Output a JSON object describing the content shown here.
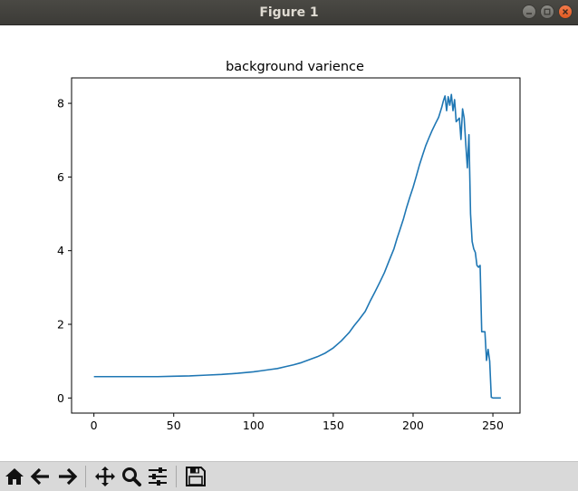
{
  "window": {
    "title": "Figure 1"
  },
  "toolbar": {
    "buttons": [
      {
        "name": "home-button",
        "icon": "home-icon"
      },
      {
        "name": "back-button",
        "icon": "arrow-left-icon"
      },
      {
        "name": "forward-button",
        "icon": "arrow-right-icon"
      },
      {
        "name": "pan-button",
        "icon": "move-icon"
      },
      {
        "name": "zoom-button",
        "icon": "magnifier-icon"
      },
      {
        "name": "configure-subplots-button",
        "icon": "sliders-icon"
      },
      {
        "name": "save-button",
        "icon": "floppy-disk-icon"
      }
    ]
  },
  "chart_data": {
    "type": "line",
    "title": "background varience",
    "xlabel": "",
    "ylabel": "",
    "xlim": [
      -14,
      267
    ],
    "ylim": [
      -0.41,
      8.69
    ],
    "xticks": [
      0,
      50,
      100,
      150,
      200,
      250
    ],
    "xtick_labels": [
      "0",
      "50",
      "100",
      "150",
      "200",
      "250"
    ],
    "yticks": [
      0,
      2,
      4,
      6,
      8
    ],
    "ytick_labels": [
      "0",
      "2",
      "4",
      "6",
      "8"
    ],
    "grid": false,
    "line_color": "#1f77b4",
    "series": [
      {
        "x": [
          0,
          5,
          10,
          20,
          30,
          40,
          50,
          60,
          70,
          80,
          90,
          100,
          105,
          110,
          115,
          120,
          125,
          130,
          135,
          140,
          145,
          150,
          155,
          160,
          163,
          166,
          170,
          173,
          176,
          179,
          182,
          185,
          188,
          190,
          192,
          194,
          196,
          198,
          200,
          202,
          204,
          206,
          208,
          210,
          212,
          214,
          216,
          218,
          219,
          220,
          221,
          222,
          223,
          224,
          225,
          226,
          227,
          228,
          229,
          230,
          231,
          232,
          233,
          234,
          235,
          236,
          237,
          238,
          239,
          240,
          241,
          242,
          243,
          244,
          245,
          246,
          247,
          248,
          249,
          250,
          251,
          252,
          253,
          254,
          255
        ],
        "y": [
          0.58,
          0.58,
          0.58,
          0.58,
          0.58,
          0.58,
          0.59,
          0.6,
          0.62,
          0.64,
          0.67,
          0.71,
          0.74,
          0.77,
          0.8,
          0.85,
          0.9,
          0.96,
          1.04,
          1.12,
          1.22,
          1.36,
          1.55,
          1.78,
          1.96,
          2.12,
          2.35,
          2.62,
          2.87,
          3.13,
          3.4,
          3.73,
          4.05,
          4.34,
          4.6,
          4.87,
          5.18,
          5.46,
          5.72,
          6.02,
          6.33,
          6.6,
          6.86,
          7.07,
          7.27,
          7.45,
          7.62,
          7.9,
          8.07,
          8.2,
          7.8,
          8.18,
          7.95,
          8.24,
          7.8,
          8.1,
          7.5,
          7.55,
          7.6,
          7.02,
          7.85,
          7.6,
          6.9,
          6.25,
          7.15,
          5.0,
          4.25,
          4.05,
          3.95,
          3.6,
          3.55,
          3.6,
          1.8,
          1.8,
          1.8,
          1.02,
          1.32,
          1.0,
          0.02,
          0.0,
          0.0,
          0.0,
          0.0,
          0.0,
          0.0
        ]
      }
    ]
  }
}
